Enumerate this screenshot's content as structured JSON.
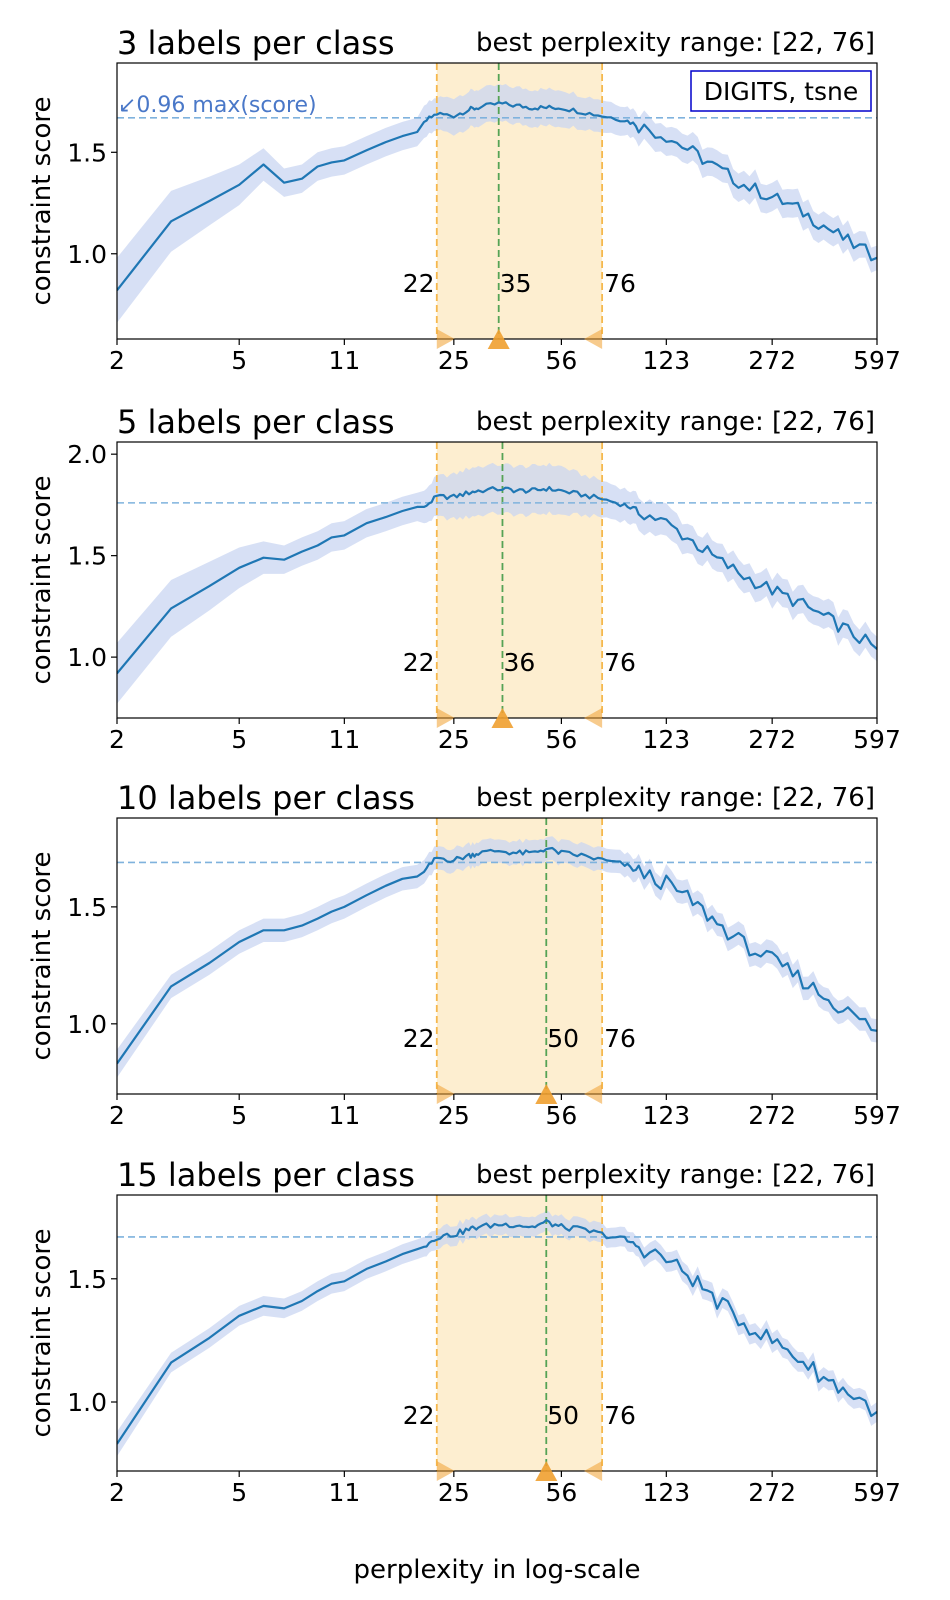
{
  "figure": {
    "xlabel": "perplexity in log-scale",
    "legend_text": "DIGITS, tsne",
    "max_label": "↙0.96 max(score)"
  },
  "colors": {
    "line": "#1f77b4",
    "band": "#c9d6f2",
    "range_fill": "#fdebc8",
    "range_edge": "#f5b84d",
    "best_line": "#55a355",
    "threshold": "#7fb2dd",
    "marker": "#f0a030",
    "max_label": "#4a78c8",
    "legend_border": "#0000cc"
  },
  "chart_data": [
    {
      "type": "line",
      "title": "3 labels per class",
      "subtitle": "best perplexity range: [22, 76]",
      "ylabel": "constraint score",
      "xscale": "log",
      "xlim": [
        2,
        597
      ],
      "xticks": [
        "2",
        "5",
        "11",
        "25",
        "56",
        "123",
        "272",
        "597"
      ],
      "ylim": [
        0.58,
        1.94
      ],
      "yticks": [
        "1.0",
        "1.5"
      ],
      "ytick_values": [
        1.0,
        1.5
      ],
      "threshold": 1.67,
      "best_range": [
        22,
        76
      ],
      "best": 35,
      "annotations": [
        "22",
        "35",
        "76"
      ],
      "series": [
        {
          "x": [
            2,
            3,
            4,
            5,
            6,
            7,
            8,
            9,
            10,
            11,
            13,
            15,
            17,
            19,
            20,
            22,
            25,
            28,
            30,
            35,
            40,
            45,
            50,
            56,
            65,
            76,
            90,
            100,
            123,
            150,
            180,
            220,
            272,
            330,
            400,
            480,
            597
          ],
          "y": [
            0.82,
            1.16,
            1.26,
            1.34,
            1.44,
            1.35,
            1.37,
            1.43,
            1.45,
            1.46,
            1.51,
            1.55,
            1.58,
            1.6,
            1.65,
            1.69,
            1.68,
            1.71,
            1.72,
            1.74,
            1.73,
            1.72,
            1.72,
            1.72,
            1.7,
            1.68,
            1.66,
            1.63,
            1.58,
            1.5,
            1.42,
            1.34,
            1.28,
            1.22,
            1.14,
            1.06,
            0.98
          ],
          "err": [
            0.16,
            0.15,
            0.12,
            0.1,
            0.08,
            0.07,
            0.07,
            0.07,
            0.07,
            0.07,
            0.07,
            0.07,
            0.07,
            0.07,
            0.08,
            0.08,
            0.09,
            0.09,
            0.09,
            0.09,
            0.09,
            0.09,
            0.09,
            0.09,
            0.08,
            0.08,
            0.07,
            0.07,
            0.07,
            0.07,
            0.07,
            0.07,
            0.07,
            0.07,
            0.07,
            0.07,
            0.06
          ]
        }
      ]
    },
    {
      "type": "line",
      "title": "5 labels per class",
      "subtitle": "best perplexity range: [22, 76]",
      "ylabel": "constraint score",
      "xscale": "log",
      "xlim": [
        2,
        597
      ],
      "xticks": [
        "2",
        "5",
        "11",
        "25",
        "56",
        "123",
        "272",
        "597"
      ],
      "ylim": [
        0.7,
        2.06
      ],
      "yticks": [
        "1.0",
        "1.5",
        "2.0"
      ],
      "ytick_values": [
        1.0,
        1.5,
        2.0
      ],
      "threshold": 1.76,
      "best_range": [
        22,
        76
      ],
      "best": 36,
      "annotations": [
        "22",
        "36",
        "76"
      ],
      "series": [
        {
          "x": [
            2,
            3,
            4,
            5,
            6,
            7,
            8,
            9,
            10,
            11,
            13,
            15,
            17,
            19,
            20,
            22,
            25,
            28,
            30,
            36,
            40,
            45,
            50,
            56,
            65,
            76,
            90,
            100,
            123,
            150,
            180,
            220,
            272,
            330,
            400,
            480,
            597
          ],
          "y": [
            0.92,
            1.24,
            1.35,
            1.44,
            1.49,
            1.48,
            1.52,
            1.55,
            1.59,
            1.6,
            1.66,
            1.69,
            1.72,
            1.74,
            1.74,
            1.79,
            1.79,
            1.81,
            1.82,
            1.83,
            1.82,
            1.82,
            1.83,
            1.82,
            1.8,
            1.78,
            1.75,
            1.72,
            1.66,
            1.57,
            1.48,
            1.4,
            1.33,
            1.27,
            1.2,
            1.13,
            1.04
          ]
        }
      ],
      "err_note": "",
      "err": [
        0.15,
        0.14,
        0.12,
        0.1,
        0.08,
        0.07,
        0.07,
        0.07,
        0.07,
        0.07,
        0.07,
        0.07,
        0.07,
        0.07,
        0.08,
        0.1,
        0.11,
        0.12,
        0.12,
        0.12,
        0.12,
        0.12,
        0.12,
        0.12,
        0.1,
        0.09,
        0.08,
        0.08,
        0.08,
        0.07,
        0.07,
        0.07,
        0.07,
        0.07,
        0.07,
        0.07,
        0.06
      ]
    },
    {
      "type": "line",
      "title": "10 labels per class",
      "subtitle": "best perplexity range: [22, 76]",
      "ylabel": "constraint score",
      "xscale": "log",
      "xlim": [
        2,
        597
      ],
      "xticks": [
        "2",
        "5",
        "11",
        "25",
        "56",
        "123",
        "272",
        "597"
      ],
      "ylim": [
        0.7,
        1.88
      ],
      "yticks": [
        "1.0",
        "1.5"
      ],
      "ytick_values": [
        1.0,
        1.5
      ],
      "threshold": 1.69,
      "best_range": [
        22,
        76
      ],
      "best": 50,
      "annotations": [
        "22",
        "50",
        "76"
      ],
      "series": [
        {
          "x": [
            2,
            3,
            4,
            5,
            6,
            7,
            8,
            9,
            10,
            11,
            13,
            15,
            17,
            19,
            20,
            22,
            25,
            28,
            30,
            35,
            40,
            45,
            50,
            56,
            65,
            76,
            90,
            100,
            123,
            150,
            180,
            220,
            272,
            330,
            400,
            480,
            597
          ],
          "y": [
            0.83,
            1.16,
            1.26,
            1.35,
            1.4,
            1.4,
            1.42,
            1.45,
            1.48,
            1.5,
            1.55,
            1.59,
            1.62,
            1.63,
            1.65,
            1.71,
            1.7,
            1.72,
            1.73,
            1.74,
            1.73,
            1.73,
            1.75,
            1.73,
            1.72,
            1.7,
            1.68,
            1.65,
            1.6,
            1.52,
            1.43,
            1.34,
            1.27,
            1.2,
            1.12,
            1.05,
            0.97
          ]
        }
      ],
      "err": [
        0.06,
        0.05,
        0.05,
        0.05,
        0.05,
        0.05,
        0.05,
        0.05,
        0.05,
        0.05,
        0.05,
        0.05,
        0.05,
        0.05,
        0.05,
        0.05,
        0.05,
        0.05,
        0.05,
        0.05,
        0.05,
        0.05,
        0.05,
        0.05,
        0.05,
        0.05,
        0.05,
        0.05,
        0.05,
        0.05,
        0.05,
        0.05,
        0.05,
        0.05,
        0.05,
        0.05,
        0.05
      ]
    },
    {
      "type": "line",
      "title": "15 labels per class",
      "subtitle": "best perplexity range: [22, 76]",
      "ylabel": "constraint score",
      "xscale": "log",
      "xlim": [
        2,
        597
      ],
      "xticks": [
        "2",
        "5",
        "11",
        "25",
        "56",
        "123",
        "272",
        "597"
      ],
      "ylim": [
        0.72,
        1.84
      ],
      "yticks": [
        "1.0",
        "1.5"
      ],
      "ytick_values": [
        1.0,
        1.5
      ],
      "threshold": 1.67,
      "best_range": [
        22,
        76
      ],
      "best": 50,
      "annotations": [
        "22",
        "50",
        "76"
      ],
      "series": [
        {
          "x": [
            2,
            3,
            4,
            5,
            6,
            7,
            8,
            9,
            10,
            11,
            13,
            15,
            17,
            19,
            20,
            22,
            25,
            28,
            30,
            35,
            40,
            45,
            50,
            56,
            65,
            76,
            90,
            100,
            123,
            150,
            180,
            220,
            272,
            330,
            400,
            480,
            597
          ],
          "y": [
            0.83,
            1.16,
            1.26,
            1.35,
            1.39,
            1.38,
            1.41,
            1.45,
            1.48,
            1.49,
            1.54,
            1.57,
            1.6,
            1.62,
            1.63,
            1.67,
            1.68,
            1.7,
            1.71,
            1.72,
            1.72,
            1.71,
            1.73,
            1.71,
            1.7,
            1.68,
            1.66,
            1.63,
            1.58,
            1.5,
            1.41,
            1.32,
            1.25,
            1.18,
            1.1,
            1.04,
            0.96
          ]
        }
      ],
      "err": [
        0.05,
        0.04,
        0.04,
        0.04,
        0.04,
        0.04,
        0.04,
        0.04,
        0.04,
        0.04,
        0.04,
        0.04,
        0.04,
        0.04,
        0.04,
        0.04,
        0.04,
        0.04,
        0.04,
        0.04,
        0.04,
        0.04,
        0.04,
        0.04,
        0.04,
        0.04,
        0.04,
        0.04,
        0.04,
        0.04,
        0.04,
        0.04,
        0.04,
        0.04,
        0.04,
        0.04,
        0.04
      ]
    }
  ]
}
